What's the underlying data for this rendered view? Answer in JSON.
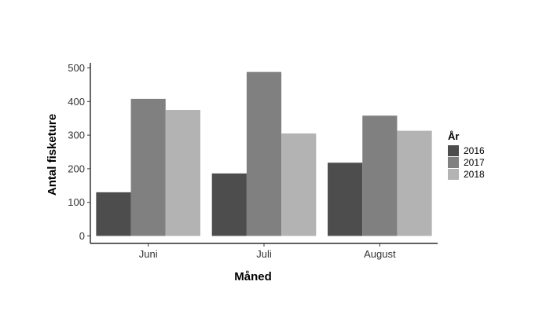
{
  "chart_data": {
    "type": "bar",
    "categories": [
      "Juni",
      "Juli",
      "August"
    ],
    "series": [
      {
        "name": "2016",
        "values": [
          130,
          186,
          218
        ],
        "color": "#4d4d4d"
      },
      {
        "name": "2017",
        "values": [
          408,
          488,
          358
        ],
        "color": "#808080"
      },
      {
        "name": "2018",
        "values": [
          375,
          305,
          313
        ],
        "color": "#b3b3b3"
      }
    ],
    "title": "",
    "xlabel": "Måned",
    "ylabel": "Antal fisketure",
    "ylim": [
      0,
      500
    ],
    "yticks": [
      0,
      100,
      200,
      300,
      400,
      500
    ],
    "grid": false,
    "legend": {
      "title": "År",
      "position": "right"
    }
  }
}
